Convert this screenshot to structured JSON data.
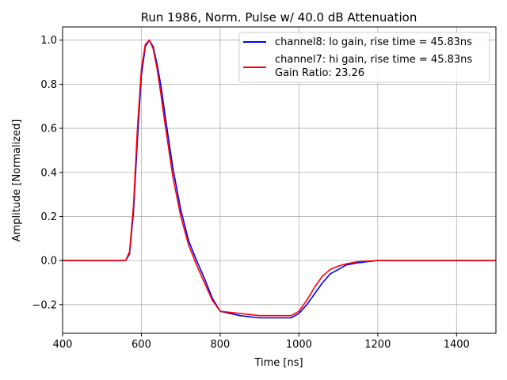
{
  "chart_data": {
    "type": "line",
    "title": "Run 1986, Norm. Pulse w/ 40.0 dB Attenuation",
    "xlabel": "Time [ns]",
    "ylabel": "Amplitude [Normalized]",
    "xlim": [
      400,
      1500
    ],
    "ylim": [
      -0.33,
      1.06
    ],
    "xticks": [
      400,
      600,
      800,
      1000,
      1200,
      1400
    ],
    "xtick_labels": [
      "400",
      "600",
      "800",
      "1000",
      "1200",
      "1400"
    ],
    "yticks": [
      -0.2,
      0.0,
      0.2,
      0.4,
      0.6,
      0.8,
      1.0
    ],
    "ytick_labels": [
      "−0.2",
      "0.0",
      "0.2",
      "0.4",
      "0.6",
      "0.8",
      "1.0"
    ],
    "grid": true,
    "legend_position": "top-right",
    "legend_extra": "Gain Ratio: 23.26",
    "series": [
      {
        "name": "channel8: lo gain, rise time = 45.83ns",
        "color": "#0000ff",
        "x": [
          400,
          500,
          560,
          570,
          580,
          590,
          600,
          610,
          620,
          630,
          640,
          650,
          660,
          680,
          700,
          720,
          740,
          760,
          780,
          800,
          850,
          900,
          950,
          980,
          1000,
          1020,
          1040,
          1060,
          1080,
          1100,
          1120,
          1150,
          1200,
          1300,
          1400,
          1500
        ],
        "y": [
          0.0,
          0.0,
          0.0,
          0.03,
          0.22,
          0.55,
          0.84,
          0.97,
          1.0,
          0.97,
          0.89,
          0.79,
          0.66,
          0.42,
          0.23,
          0.09,
          0.0,
          -0.08,
          -0.17,
          -0.23,
          -0.25,
          -0.26,
          -0.26,
          -0.26,
          -0.24,
          -0.2,
          -0.15,
          -0.1,
          -0.06,
          -0.04,
          -0.02,
          -0.01,
          0.0,
          0.0,
          0.0,
          0.0
        ]
      },
      {
        "name": "channel7: hi gain, rise time = 45.83ns",
        "color": "#ff0000",
        "x": [
          400,
          500,
          560,
          570,
          580,
          590,
          600,
          610,
          620,
          630,
          640,
          650,
          660,
          680,
          700,
          720,
          740,
          760,
          780,
          800,
          850,
          900,
          950,
          980,
          1000,
          1020,
          1040,
          1060,
          1080,
          1100,
          1120,
          1150,
          1200,
          1300,
          1400,
          1500
        ],
        "y": [
          0.0,
          0.0,
          0.0,
          0.04,
          0.25,
          0.6,
          0.87,
          0.98,
          1.0,
          0.96,
          0.87,
          0.75,
          0.62,
          0.38,
          0.2,
          0.07,
          -0.02,
          -0.1,
          -0.18,
          -0.23,
          -0.24,
          -0.25,
          -0.25,
          -0.25,
          -0.23,
          -0.18,
          -0.12,
          -0.07,
          -0.04,
          -0.025,
          -0.015,
          -0.005,
          0.0,
          0.0,
          0.0,
          0.0
        ]
      }
    ]
  }
}
